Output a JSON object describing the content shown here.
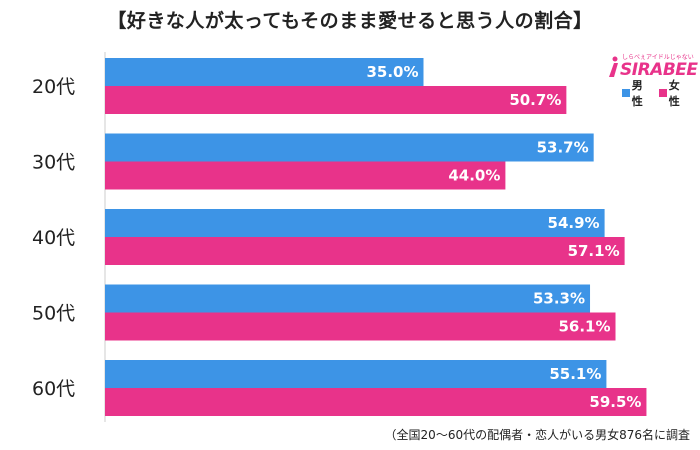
{
  "chart_data": {
    "type": "bar",
    "orientation": "horizontal",
    "title": "【好きな人が太ってもそのまま愛せると思う人の割合】",
    "categories": [
      "20代",
      "30代",
      "40代",
      "50代",
      "60代"
    ],
    "series": [
      {
        "name": "男性",
        "color": "#3d94e6",
        "values": [
          35.0,
          53.7,
          54.9,
          53.3,
          55.1
        ],
        "labels": [
          "35.0%",
          "53.7%",
          "54.9%",
          "53.3%",
          "55.1%"
        ]
      },
      {
        "name": "女性",
        "color": "#e8338a",
        "values": [
          50.7,
          44.0,
          57.1,
          56.1,
          59.5
        ],
        "labels": [
          "50.7%",
          "44.0%",
          "57.1%",
          "56.1%",
          "59.5%"
        ]
      }
    ],
    "xlim": [
      0,
      60
    ],
    "grid": false,
    "legend_position": "top-right"
  },
  "logo": {
    "tagline": "しらべぇアイドルじゃない",
    "word": "SIRABEE"
  },
  "footnote": "（全国20～60代の配偶者・恋人がいる男女876名に調査"
}
